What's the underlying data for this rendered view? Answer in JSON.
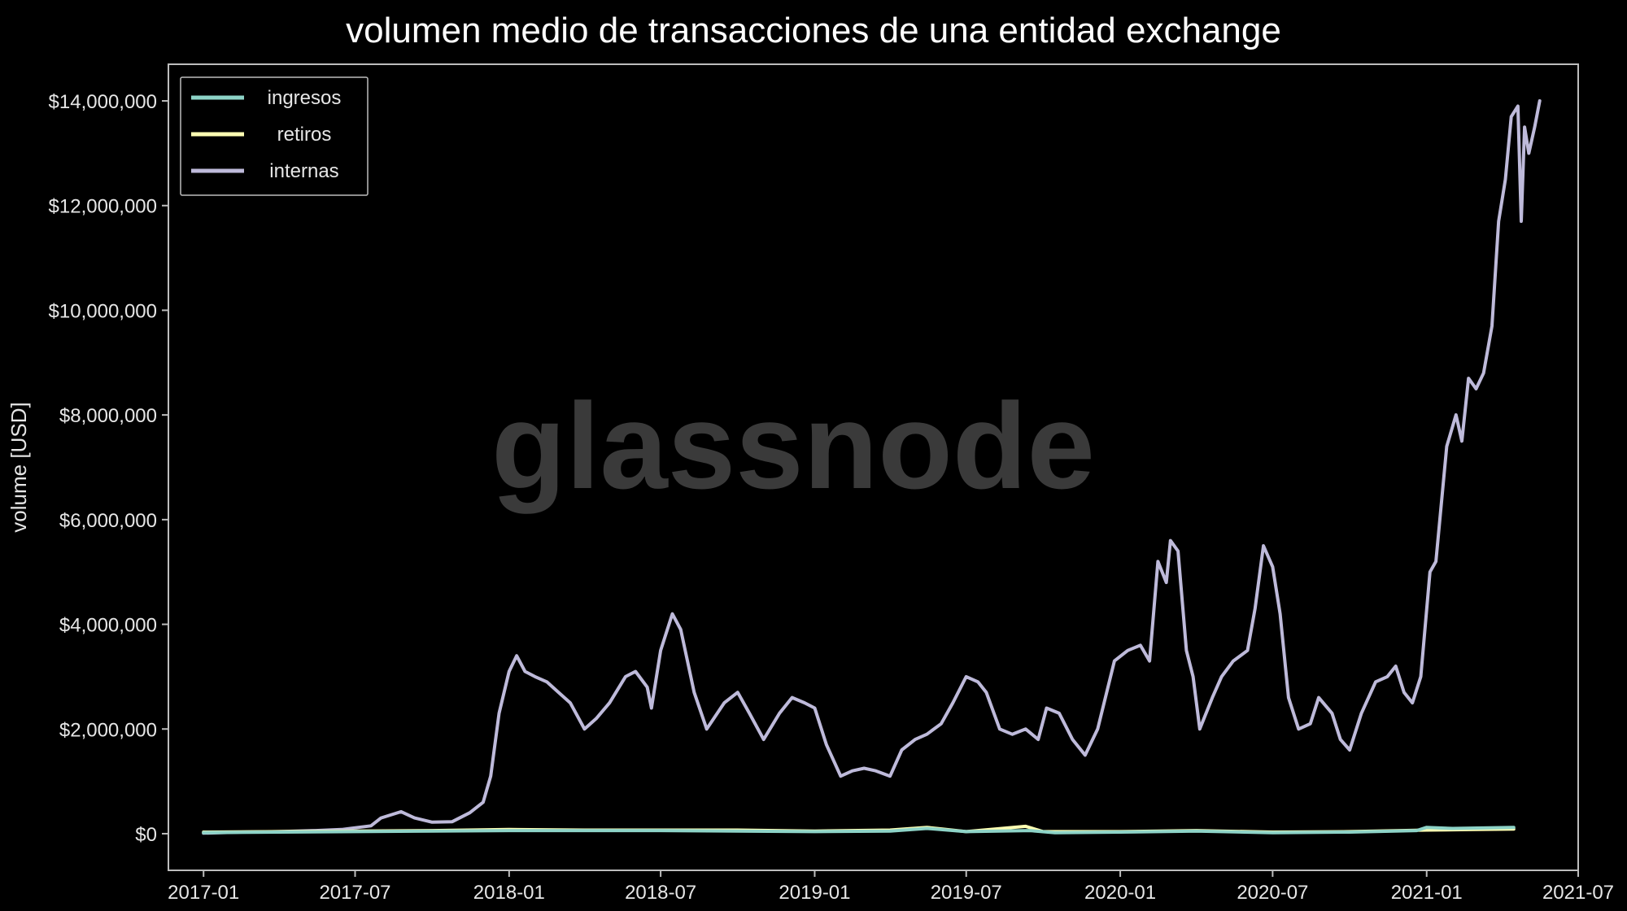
{
  "chart_data": {
    "type": "line",
    "title": "volumen medio de transacciones de una entidad exchange",
    "ylabel": "volume [USD]",
    "xlabel": "",
    "watermark": "glassnode",
    "ylim": [
      -700000,
      14700000
    ],
    "xlim": [
      "2016-11-20",
      "2021-07-01"
    ],
    "y_ticks": [
      0,
      2000000,
      4000000,
      6000000,
      8000000,
      10000000,
      12000000,
      14000000
    ],
    "y_tick_labels": [
      "$0",
      "$2,000,000",
      "$4,000,000",
      "$6,000,000",
      "$8,000,000",
      "$10,000,000",
      "$12,000,000",
      "$14,000,000"
    ],
    "x_ticks": [
      "2017-01-01",
      "2017-07-01",
      "2018-01-01",
      "2018-07-01",
      "2019-01-01",
      "2019-07-01",
      "2020-01-01",
      "2020-07-01",
      "2021-01-01",
      "2021-07-01"
    ],
    "x_tick_labels": [
      "2017-01",
      "2017-07",
      "2018-01",
      "2018-07",
      "2019-01",
      "2019-07",
      "2020-01",
      "2020-07",
      "2021-01",
      "2021-07"
    ],
    "legend_position": "top-left",
    "grid": false,
    "colors": {
      "background": "#000000",
      "axes": "#bdbdbd",
      "text": "#e6e6e6",
      "watermark": "#3a3a3a"
    },
    "series": [
      {
        "name": "ingresos",
        "color": "#8dd3c7",
        "points": [
          [
            "2017-01-01",
            20000
          ],
          [
            "2017-04-01",
            30000
          ],
          [
            "2017-07-01",
            40000
          ],
          [
            "2017-10-01",
            50000
          ],
          [
            "2018-01-01",
            60000
          ],
          [
            "2018-04-01",
            60000
          ],
          [
            "2018-07-01",
            60000
          ],
          [
            "2018-10-01",
            50000
          ],
          [
            "2019-01-01",
            40000
          ],
          [
            "2019-04-01",
            50000
          ],
          [
            "2019-05-15",
            100000
          ],
          [
            "2019-07-01",
            40000
          ],
          [
            "2019-09-15",
            60000
          ],
          [
            "2019-10-15",
            20000
          ],
          [
            "2020-01-01",
            30000
          ],
          [
            "2020-04-01",
            50000
          ],
          [
            "2020-07-01",
            20000
          ],
          [
            "2020-10-01",
            30000
          ],
          [
            "2020-12-20",
            60000
          ],
          [
            "2021-01-01",
            120000
          ],
          [
            "2021-02-01",
            100000
          ],
          [
            "2021-04-15",
            120000
          ]
        ]
      },
      {
        "name": "retiros",
        "color": "#ffffb3",
        "points": [
          [
            "2017-01-01",
            30000
          ],
          [
            "2017-04-01",
            40000
          ],
          [
            "2017-07-01",
            50000
          ],
          [
            "2017-10-01",
            60000
          ],
          [
            "2018-01-01",
            80000
          ],
          [
            "2018-04-01",
            70000
          ],
          [
            "2018-07-01",
            70000
          ],
          [
            "2018-10-01",
            70000
          ],
          [
            "2019-01-01",
            50000
          ],
          [
            "2019-04-01",
            70000
          ],
          [
            "2019-05-15",
            120000
          ],
          [
            "2019-07-01",
            40000
          ],
          [
            "2019-09-10",
            140000
          ],
          [
            "2019-10-01",
            40000
          ],
          [
            "2020-01-01",
            40000
          ],
          [
            "2020-04-01",
            60000
          ],
          [
            "2020-07-01",
            30000
          ],
          [
            "2020-10-01",
            40000
          ],
          [
            "2021-01-01",
            70000
          ],
          [
            "2021-03-01",
            80000
          ],
          [
            "2021-04-15",
            90000
          ]
        ]
      },
      {
        "name": "internas",
        "color": "#bebada",
        "points": [
          [
            "2017-01-01",
            10000
          ],
          [
            "2017-02-15",
            30000
          ],
          [
            "2017-04-01",
            40000
          ],
          [
            "2017-05-15",
            60000
          ],
          [
            "2017-06-15",
            80000
          ],
          [
            "2017-07-20",
            150000
          ],
          [
            "2017-08-01",
            300000
          ],
          [
            "2017-08-25",
            420000
          ],
          [
            "2017-09-10",
            300000
          ],
          [
            "2017-10-01",
            220000
          ],
          [
            "2017-10-25",
            230000
          ],
          [
            "2017-11-15",
            400000
          ],
          [
            "2017-12-01",
            600000
          ],
          [
            "2017-12-10",
            1100000
          ],
          [
            "2017-12-20",
            2300000
          ],
          [
            "2018-01-01",
            3100000
          ],
          [
            "2018-01-10",
            3400000
          ],
          [
            "2018-01-20",
            3100000
          ],
          [
            "2018-02-01",
            3000000
          ],
          [
            "2018-02-15",
            2900000
          ],
          [
            "2018-03-01",
            2700000
          ],
          [
            "2018-03-15",
            2500000
          ],
          [
            "2018-04-01",
            2000000
          ],
          [
            "2018-04-15",
            2200000
          ],
          [
            "2018-05-01",
            2500000
          ],
          [
            "2018-05-20",
            3000000
          ],
          [
            "2018-06-01",
            3100000
          ],
          [
            "2018-06-15",
            2800000
          ],
          [
            "2018-06-20",
            2400000
          ],
          [
            "2018-07-01",
            3500000
          ],
          [
            "2018-07-15",
            4200000
          ],
          [
            "2018-07-25",
            3900000
          ],
          [
            "2018-08-10",
            2700000
          ],
          [
            "2018-08-25",
            2000000
          ],
          [
            "2018-09-15",
            2500000
          ],
          [
            "2018-10-01",
            2700000
          ],
          [
            "2018-10-15",
            2300000
          ],
          [
            "2018-11-01",
            1800000
          ],
          [
            "2018-11-20",
            2300000
          ],
          [
            "2018-12-05",
            2600000
          ],
          [
            "2018-12-20",
            2500000
          ],
          [
            "2019-01-01",
            2400000
          ],
          [
            "2019-01-15",
            1700000
          ],
          [
            "2019-02-01",
            1100000
          ],
          [
            "2019-02-15",
            1200000
          ],
          [
            "2019-03-01",
            1250000
          ],
          [
            "2019-03-15",
            1200000
          ],
          [
            "2019-04-01",
            1100000
          ],
          [
            "2019-04-15",
            1600000
          ],
          [
            "2019-05-01",
            1800000
          ],
          [
            "2019-05-15",
            1900000
          ],
          [
            "2019-06-01",
            2100000
          ],
          [
            "2019-06-15",
            2500000
          ],
          [
            "2019-07-01",
            3000000
          ],
          [
            "2019-07-15",
            2900000
          ],
          [
            "2019-07-25",
            2700000
          ],
          [
            "2019-08-10",
            2000000
          ],
          [
            "2019-08-25",
            1900000
          ],
          [
            "2019-09-10",
            2000000
          ],
          [
            "2019-09-25",
            1800000
          ],
          [
            "2019-10-05",
            2400000
          ],
          [
            "2019-10-20",
            2300000
          ],
          [
            "2019-11-05",
            1800000
          ],
          [
            "2019-11-20",
            1500000
          ],
          [
            "2019-12-05",
            2000000
          ],
          [
            "2019-12-25",
            3300000
          ],
          [
            "2020-01-10",
            3500000
          ],
          [
            "2020-01-25",
            3600000
          ],
          [
            "2020-02-05",
            3300000
          ],
          [
            "2020-02-15",
            5200000
          ],
          [
            "2020-02-25",
            4800000
          ],
          [
            "2020-03-01",
            5600000
          ],
          [
            "2020-03-10",
            5400000
          ],
          [
            "2020-03-20",
            3500000
          ],
          [
            "2020-03-28",
            3000000
          ],
          [
            "2020-04-05",
            2000000
          ],
          [
            "2020-04-20",
            2600000
          ],
          [
            "2020-05-01",
            3000000
          ],
          [
            "2020-05-15",
            3300000
          ],
          [
            "2020-06-01",
            3500000
          ],
          [
            "2020-06-10",
            4300000
          ],
          [
            "2020-06-20",
            5500000
          ],
          [
            "2020-07-01",
            5100000
          ],
          [
            "2020-07-10",
            4200000
          ],
          [
            "2020-07-20",
            2600000
          ],
          [
            "2020-08-01",
            2000000
          ],
          [
            "2020-08-15",
            2100000
          ],
          [
            "2020-08-25",
            2600000
          ],
          [
            "2020-09-10",
            2300000
          ],
          [
            "2020-09-20",
            1800000
          ],
          [
            "2020-10-01",
            1600000
          ],
          [
            "2020-10-15",
            2300000
          ],
          [
            "2020-11-01",
            2900000
          ],
          [
            "2020-11-15",
            3000000
          ],
          [
            "2020-11-25",
            3200000
          ],
          [
            "2020-12-05",
            2700000
          ],
          [
            "2020-12-15",
            2500000
          ],
          [
            "2020-12-25",
            3000000
          ],
          [
            "2021-01-05",
            5000000
          ],
          [
            "2021-01-12",
            5200000
          ],
          [
            "2021-01-25",
            7400000
          ],
          [
            "2021-02-05",
            8000000
          ],
          [
            "2021-02-12",
            7500000
          ],
          [
            "2021-02-20",
            8700000
          ],
          [
            "2021-03-01",
            8500000
          ],
          [
            "2021-03-10",
            8800000
          ],
          [
            "2021-03-20",
            9700000
          ],
          [
            "2021-03-28",
            11700000
          ],
          [
            "2021-04-05",
            12500000
          ],
          [
            "2021-04-12",
            13700000
          ],
          [
            "2021-04-20",
            13900000
          ],
          [
            "2021-04-24",
            11700000
          ],
          [
            "2021-04-28",
            13500000
          ],
          [
            "2021-05-03",
            13000000
          ],
          [
            "2021-05-10",
            13500000
          ],
          [
            "2021-05-16",
            14000000
          ]
        ]
      }
    ]
  }
}
